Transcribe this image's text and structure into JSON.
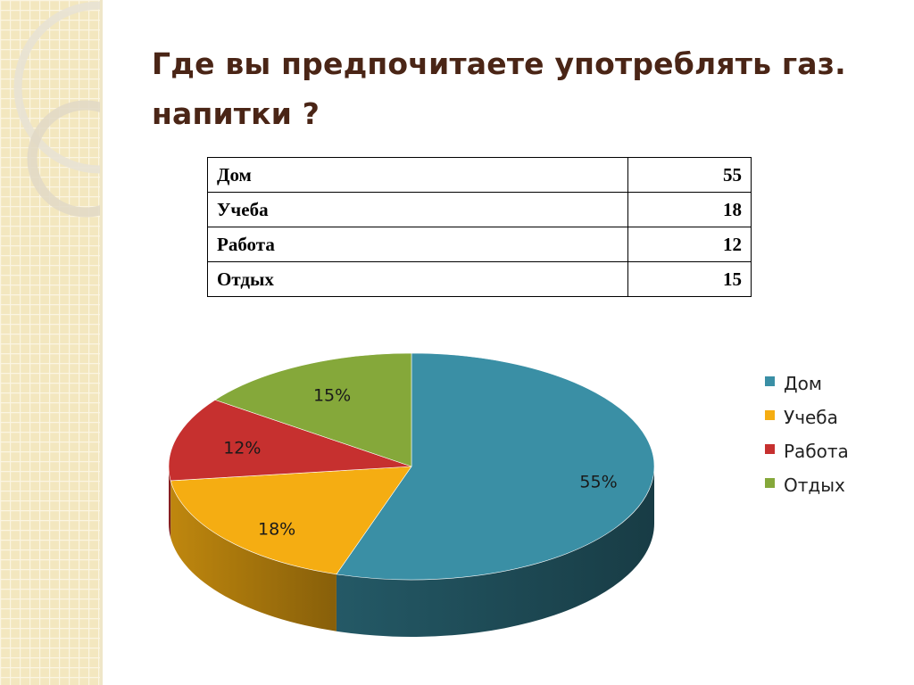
{
  "slide": {
    "title": "Где вы предпочитаете употреблять газ. напитки ?"
  },
  "table": {
    "rows": [
      {
        "label": "Дом",
        "value": "55"
      },
      {
        "label": "Учеба",
        "value": "18"
      },
      {
        "label": "Работа",
        "value": "12"
      },
      {
        "label": "Отдых",
        "value": "15"
      }
    ]
  },
  "chart_data": {
    "type": "pie",
    "style": "3d-exploded-none",
    "categories": [
      "Дом",
      "Учеба",
      "Работа",
      "Отдых"
    ],
    "values": [
      55,
      18,
      12,
      15
    ],
    "data_labels": [
      "55%",
      "18%",
      "12%",
      "15%"
    ],
    "colors": [
      "#3a8fa5",
      "#f5ad12",
      "#c6302f",
      "#85a83a"
    ],
    "legend_position": "right"
  }
}
